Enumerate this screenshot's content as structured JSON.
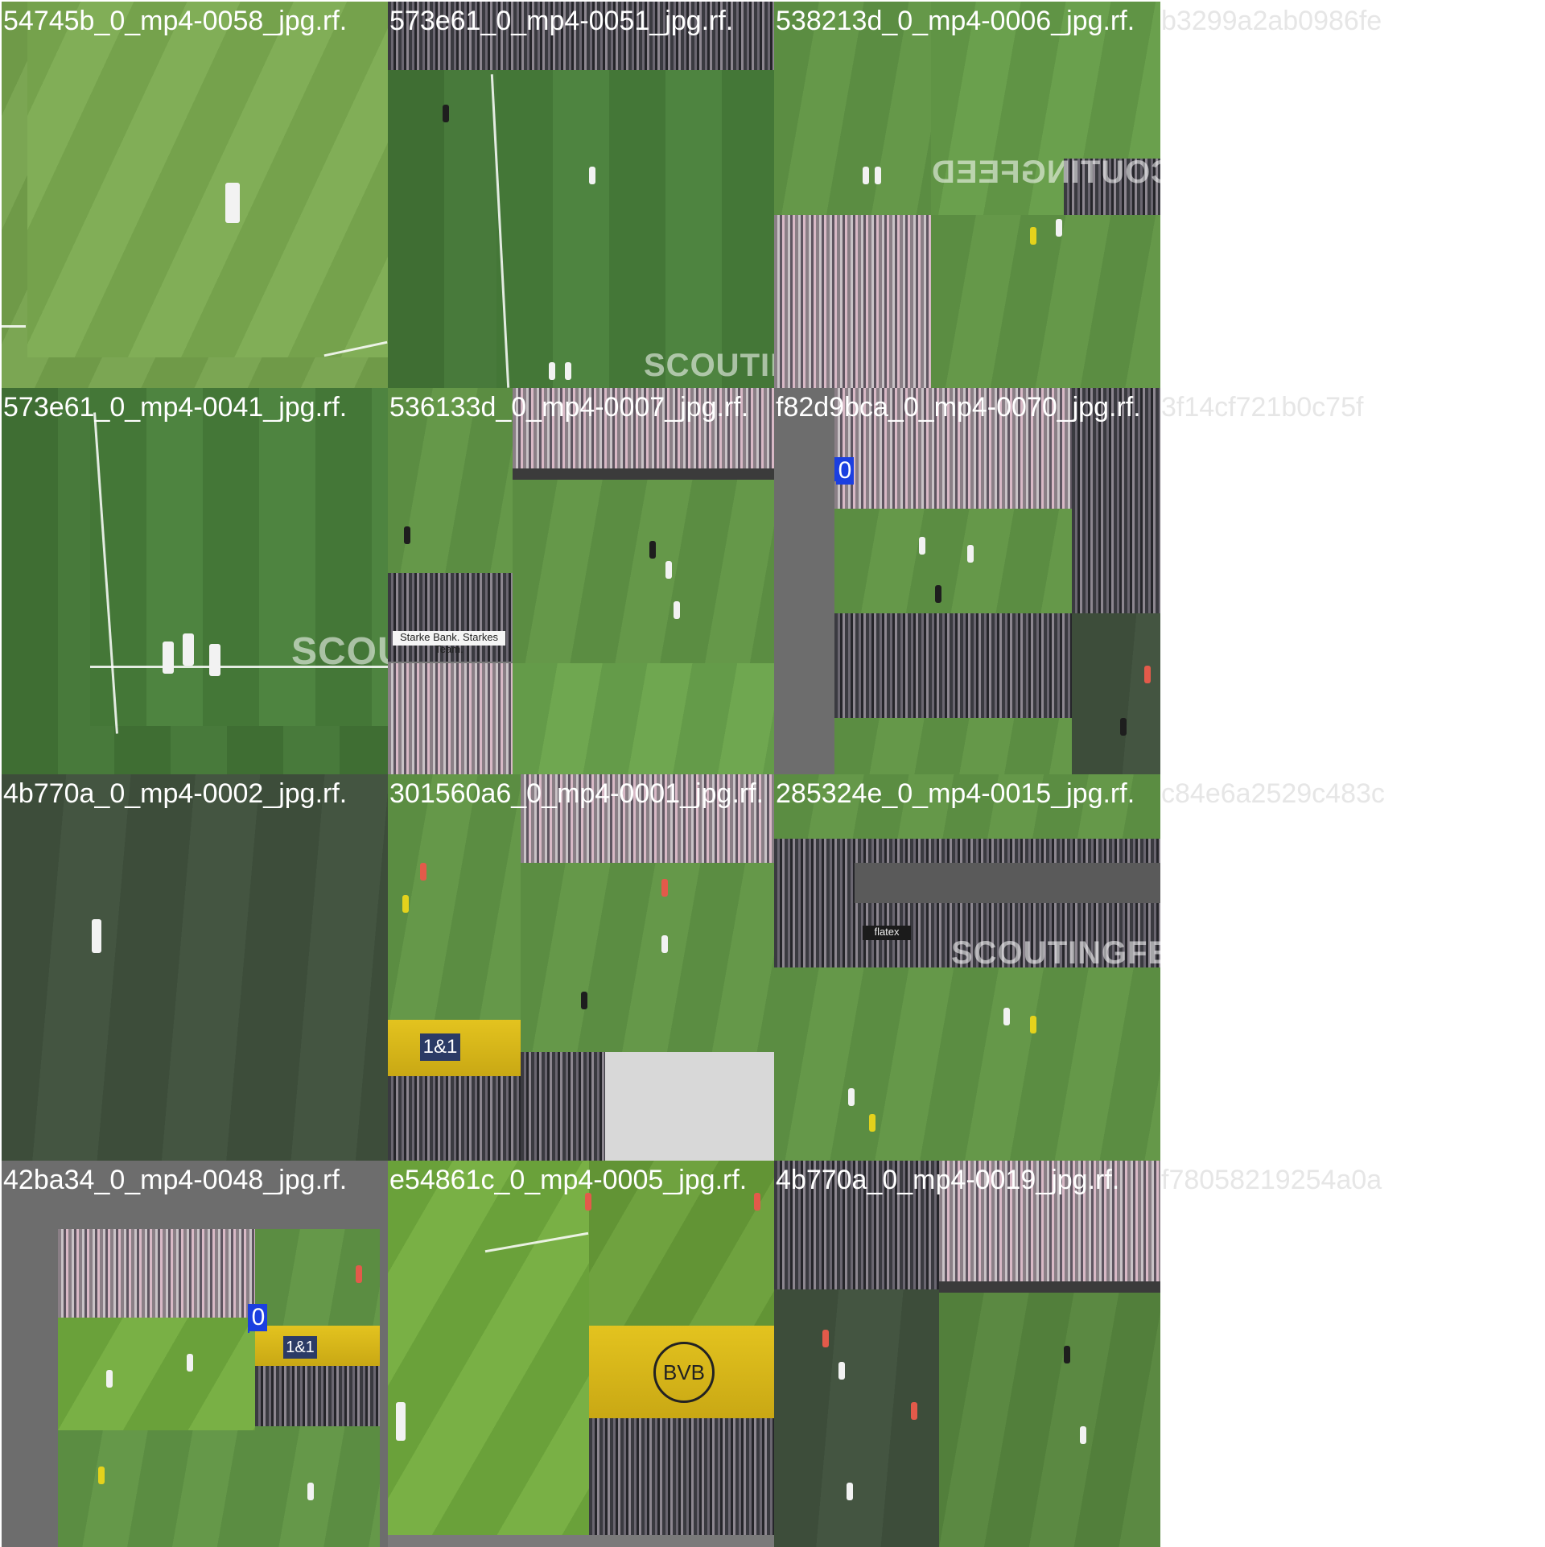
{
  "tiles": [
    {
      "caption": "54745b_0_mp4-0058_jpg.rf.",
      "watermark": ""
    },
    {
      "caption": "573e61_0_mp4-0051_jpg.rf.",
      "watermark": "SCOUTINGF"
    },
    {
      "caption": "538213d_0_mp4-0006_jpg.rf.",
      "caption_tail": "b3299a2ab0986fe",
      "watermark": "SCOUTINGFEED"
    },
    {
      "caption": "573e61_0_mp4-0041_jpg.rf.",
      "watermark": "SCOUT"
    },
    {
      "caption": "536133d_0_mp4-0007_jpg.rf.",
      "watermark": ""
    },
    {
      "caption": "f82d9bca_0_mp4-0070_jpg.rf.",
      "caption_tail": "3f14cf721b0c75f",
      "badge": "0"
    },
    {
      "caption": "4b770a_0_mp4-0002_jpg.rf.",
      "watermark": ""
    },
    {
      "caption": "301560a6_0_mp4-0001_jpg.rf.",
      "watermark": ""
    },
    {
      "caption": "285324e_0_mp4-0015_jpg.rf.",
      "caption_tail": "c84e6a2529c483c",
      "watermark": "SCOUTINGFEED"
    },
    {
      "caption": "42ba34_0_mp4-0048_jpg.rf.",
      "badge": "0",
      "sign_text": "1&1"
    },
    {
      "caption": "e54861c_0_mp4-0005_jpg.rf.",
      "sign_text": "BVB"
    },
    {
      "caption": "4b770a_0_mp4-0019_jpg.rf.",
      "caption_tail": "f78058219254a0a"
    }
  ],
  "stand_signs": {
    "starke_bank": "Starke Bank. Starkes Team.",
    "sign_181": "1&1",
    "flatex": "flatex"
  }
}
